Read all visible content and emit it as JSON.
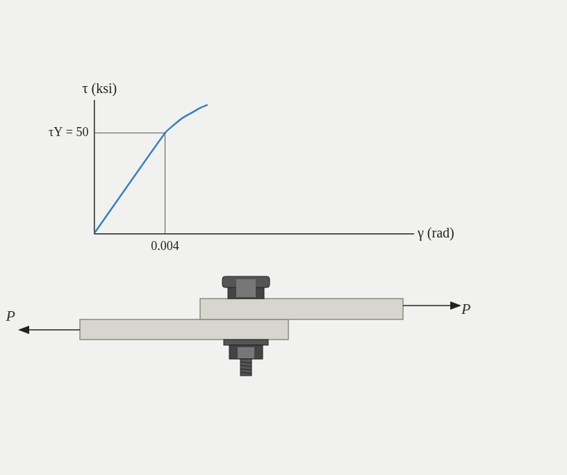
{
  "chart_data": {
    "type": "line",
    "y_label": "τ (ksi)",
    "x_label": "γ (rad)",
    "x": [
      0,
      0.004,
      0.0045,
      0.005,
      0.0055,
      0.006,
      0.0064
    ],
    "values": [
      0,
      50,
      54,
      57.5,
      60,
      62.5,
      64
    ],
    "color": "#3b7fc0",
    "xlim": [
      0,
      0.018
    ],
    "ylim": [
      0,
      66
    ],
    "xticks": [
      0.004
    ],
    "yticks": [
      {
        "value": 50,
        "label": "τY = 50"
      }
    ],
    "grid": false
  },
  "diagram": {
    "load_left": "P",
    "load_right": "P"
  }
}
